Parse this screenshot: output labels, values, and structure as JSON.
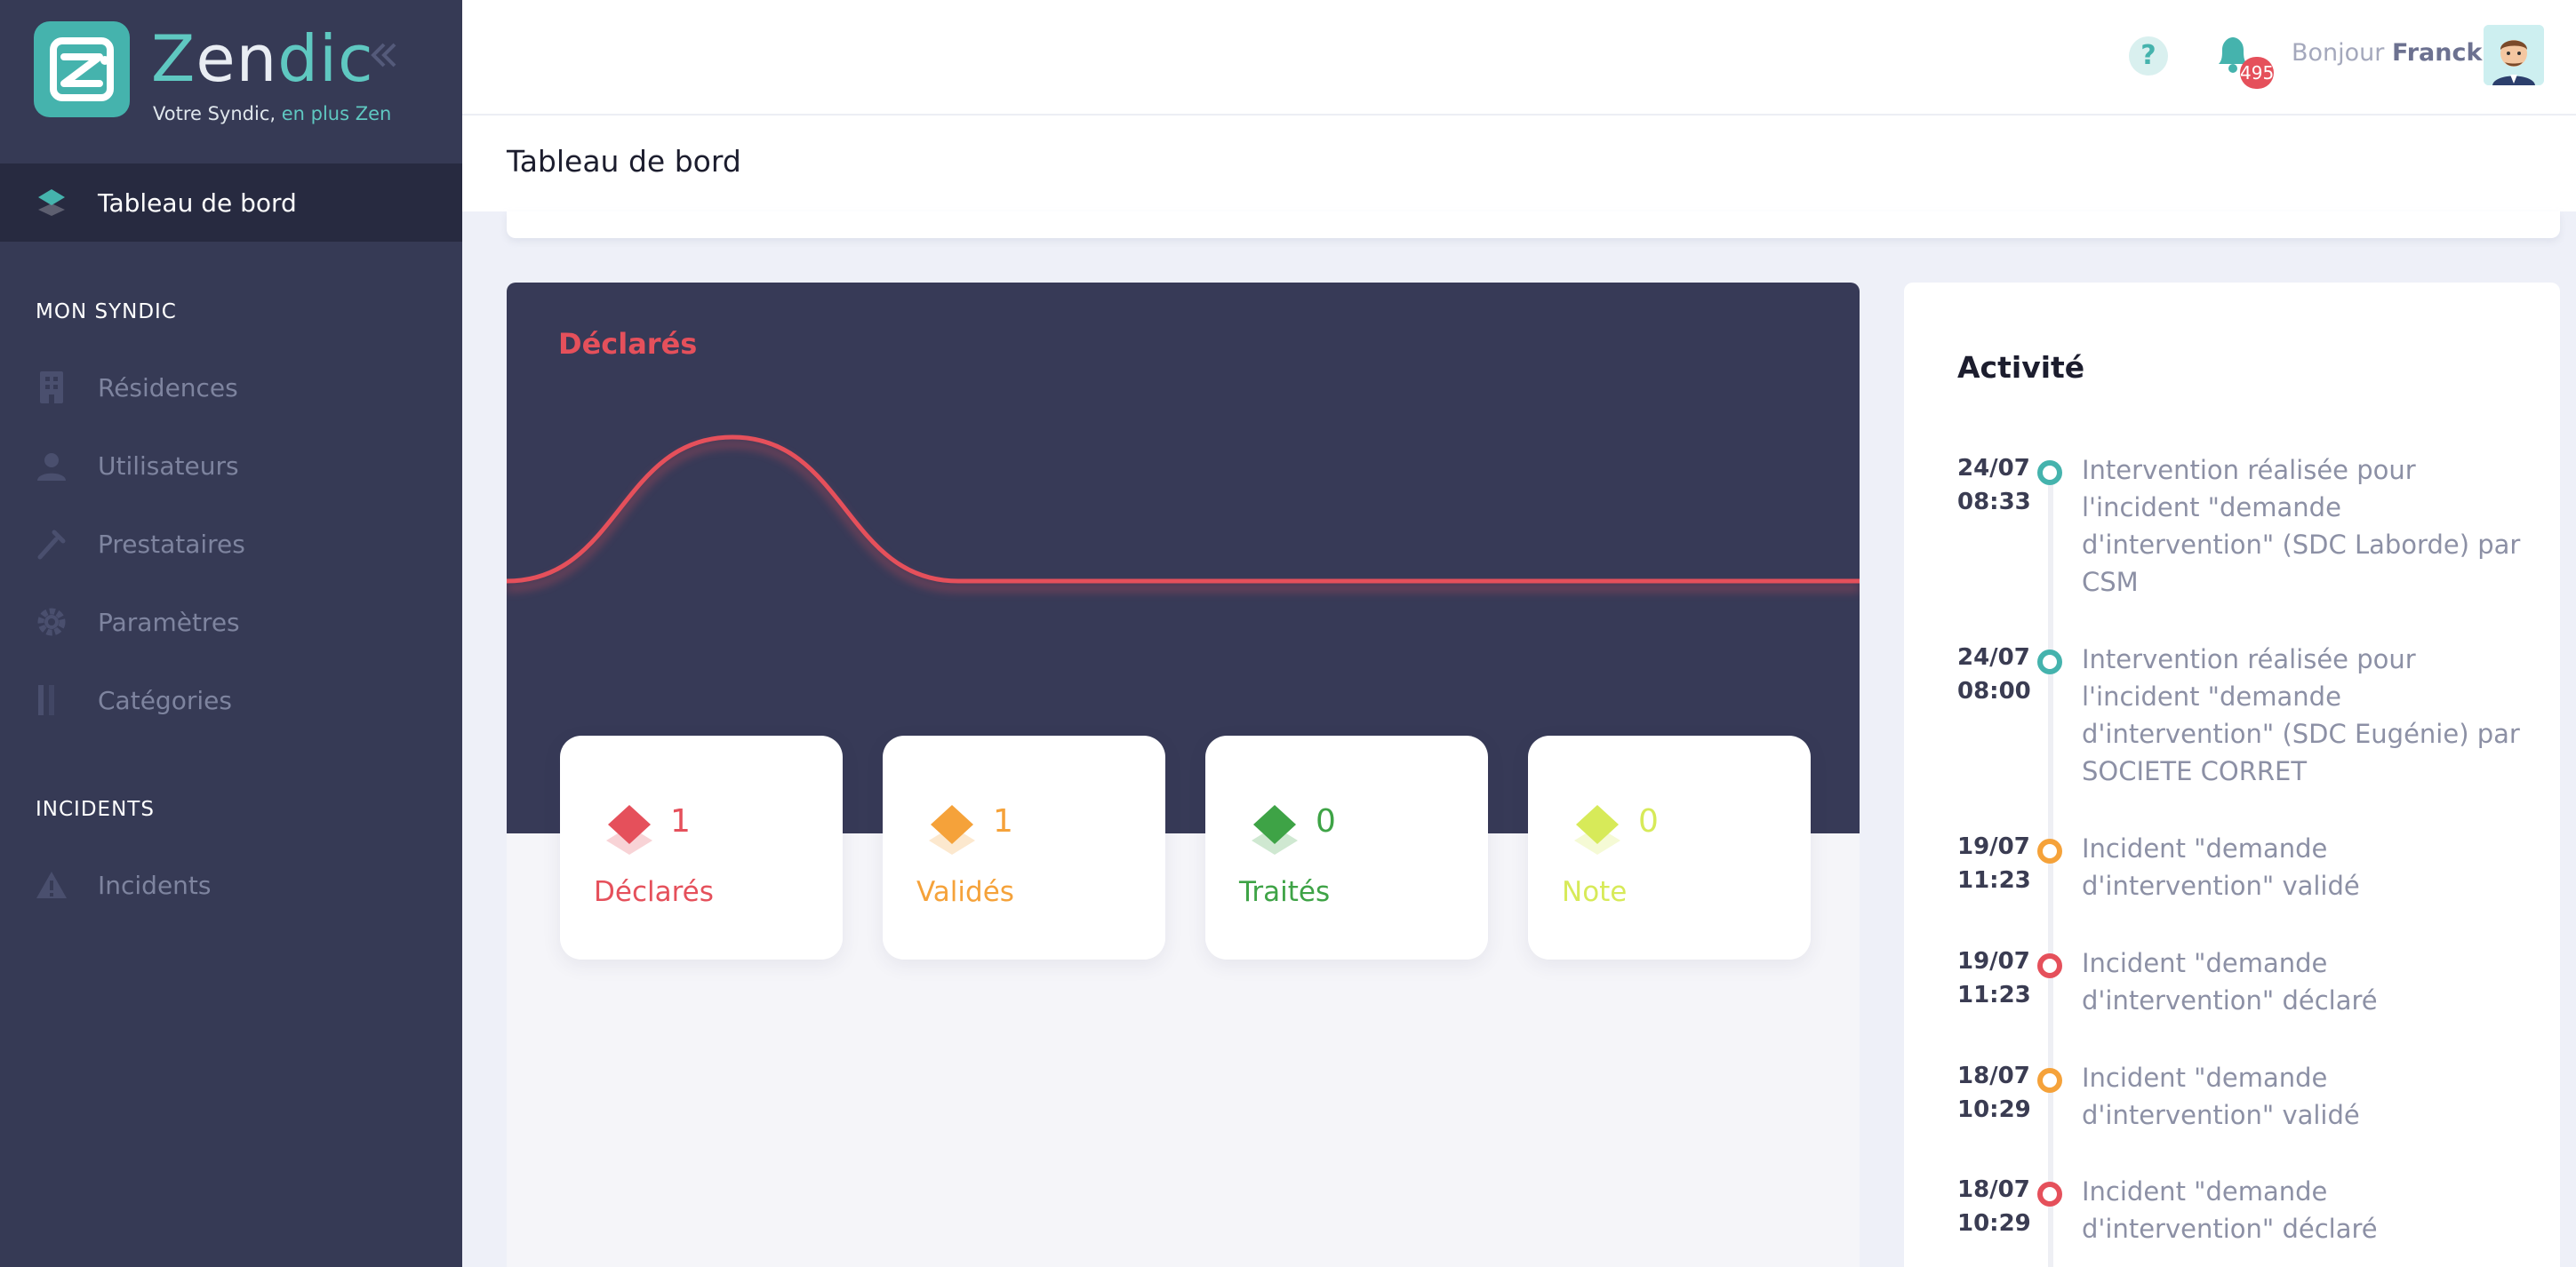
{
  "brand": {
    "name_part1": "Z",
    "name_part2": "en",
    "name_part3": "dic",
    "tagline_part1": "Votre Syndic, ",
    "tagline_part2": "en plus Zen",
    "colors": {
      "teal": "#45b3ad",
      "sidebar": "#363a55",
      "sidebar_active": "#272a40"
    }
  },
  "sidebar": {
    "active_item": {
      "label": "Tableau de bord",
      "icon": "layers-icon"
    },
    "sections": [
      {
        "title": "MON SYNDIC",
        "items": [
          {
            "label": "Résidences",
            "icon": "building-icon"
          },
          {
            "label": "Utilisateurs",
            "icon": "user-icon"
          },
          {
            "label": "Prestataires",
            "icon": "wrench-icon"
          },
          {
            "label": "Paramètres",
            "icon": "gear-icon"
          },
          {
            "label": "Catégories",
            "icon": "columns-icon"
          }
        ]
      },
      {
        "title": "INCIDENTS",
        "items": [
          {
            "label": "Incidents",
            "icon": "warning-icon"
          }
        ]
      }
    ]
  },
  "header": {
    "help_symbol": "?",
    "notifications_count": "495",
    "greeting": "Bonjour",
    "user_name": "Franck"
  },
  "page": {
    "title": "Tableau de bord"
  },
  "chart_data": {
    "type": "line",
    "title": "Déclarés",
    "series": [
      {
        "values": [
          0,
          1,
          0,
          0,
          0,
          0,
          0
        ]
      }
    ],
    "color": "#e5505b",
    "grid": false
  },
  "stats": [
    {
      "value": "1",
      "label": "Déclarés",
      "color": "#e5505b"
    },
    {
      "value": "1",
      "label": "Validés",
      "color": "#f5a23a"
    },
    {
      "value": "0",
      "label": "Traités",
      "color": "#3ea346"
    },
    {
      "value": "0",
      "label": "Note",
      "color": "#d7ea59"
    }
  ],
  "activity": {
    "title": "Activité",
    "items": [
      {
        "date": "24/07",
        "time": "08:33",
        "text": "Intervention réalisée pour l'incident \"demande d'intervention\" (SDC Laborde) par CSM",
        "color": "#45b3ad"
      },
      {
        "date": "24/07",
        "time": "08:00",
        "text": "Intervention réalisée pour l'incident \"demande d'intervention\" (SDC Eugénie) par SOCIETE CORRET",
        "color": "#45b3ad"
      },
      {
        "date": "19/07",
        "time": "11:23",
        "text": "Incident \"demande d'intervention\" validé",
        "color": "#f5a23a"
      },
      {
        "date": "19/07",
        "time": "11:23",
        "text": "Incident \"demande d'intervention\" déclaré",
        "color": "#e5505b"
      },
      {
        "date": "18/07",
        "time": "10:29",
        "text": "Incident \"demande d'intervention\" validé",
        "color": "#f5a23a"
      },
      {
        "date": "18/07",
        "time": "10:29",
        "text": "Incident \"demande d'intervention\" déclaré",
        "color": "#e5505b"
      }
    ]
  }
}
